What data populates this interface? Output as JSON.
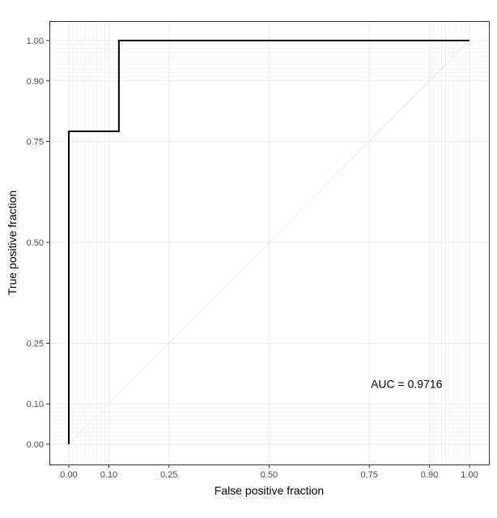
{
  "chart_data": {
    "type": "line",
    "xlabel": "False positive fraction",
    "ylabel": "True positive fraction",
    "xlim": [
      0,
      1
    ],
    "ylim": [
      0,
      1
    ],
    "x_ticks": [
      0.0,
      0.1,
      0.25,
      0.5,
      0.75,
      0.9,
      1.0
    ],
    "x_tick_labels": [
      "0.00",
      "0.10",
      "0.25",
      "0.50",
      "0.75",
      "0.90",
      "1.00"
    ],
    "y_ticks": [
      0.0,
      0.1,
      0.25,
      0.5,
      0.75,
      0.9,
      1.0
    ],
    "y_tick_labels": [
      "0.00",
      "0.10",
      "0.25",
      "0.50",
      "0.75",
      "0.90",
      "1.00"
    ],
    "minor_grid": [
      0.01,
      0.02,
      0.03,
      0.04,
      0.05,
      0.06,
      0.07,
      0.08,
      0.09,
      0.91,
      0.92,
      0.93,
      0.94,
      0.95,
      0.96,
      0.97,
      0.98,
      0.99
    ],
    "grid": true,
    "series": [
      {
        "x": [
          0.0,
          0.0,
          0.125,
          0.125,
          1.0
        ],
        "y": [
          0.0,
          0.775,
          0.775,
          1.0,
          1.0
        ],
        "color": "#000000"
      }
    ],
    "reference_line": {
      "x": [
        0,
        1
      ],
      "y": [
        0,
        1
      ],
      "color": "#ebebeb"
    },
    "annotations": [
      {
        "text": "AUC = 0.9716",
        "x": 0.75,
        "y": 0.15
      }
    ]
  }
}
